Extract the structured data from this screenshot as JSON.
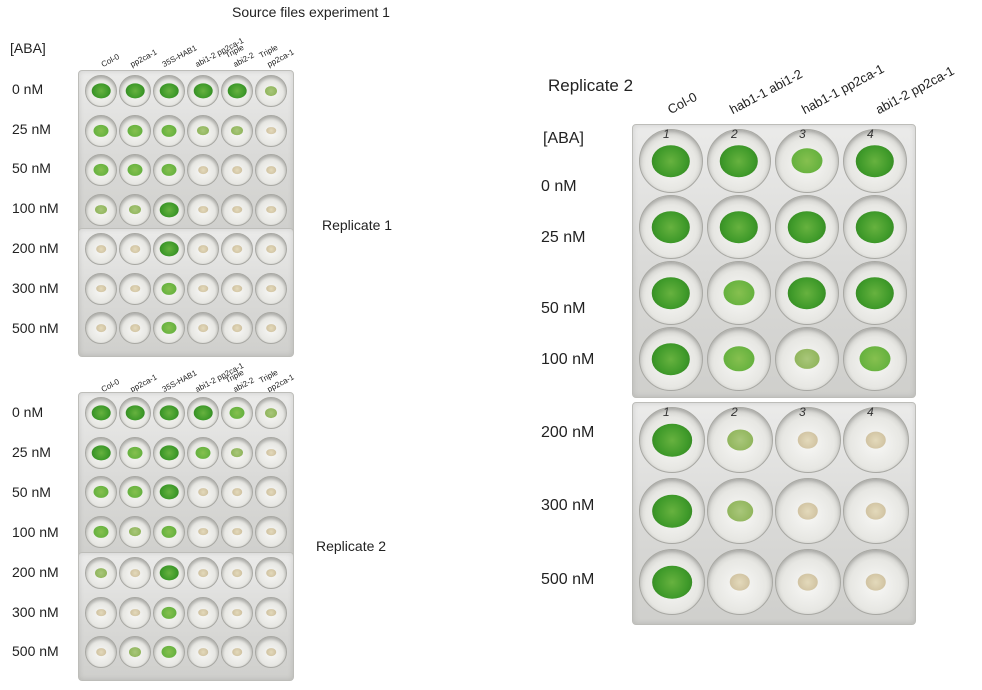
{
  "header": {
    "title": "Source files experiment 1"
  },
  "exp1": {
    "aba_label": "[ABA]",
    "columns": [
      "Col-0",
      "pp2ca-1",
      "35S-HAB1",
      "abi1-2 pp2ca-1",
      "Triple\nabi2-2",
      "Triple\npp2ca-1"
    ],
    "concentrations": [
      "0 nM",
      "25 nM",
      "50 nM",
      "100 nM",
      "200 nM",
      "300 nM",
      "500 nM"
    ],
    "replicate1_label": "Replicate 1",
    "replicate2_label": "Replicate 2"
  },
  "rep2": {
    "title": "Replicate 2",
    "aba_label": "[ABA]",
    "columns": [
      "Col-0",
      "hab1-1 abi1-2",
      "hab1-1 pp2ca-1",
      "abi1-2 pp2ca-1"
    ],
    "concentrations": [
      "0 nM",
      "25 nM",
      "50 nM",
      "100 nM",
      "200 nM",
      "300 nM",
      "500 nM"
    ],
    "well_numbers": [
      "1",
      "2",
      "3",
      "4"
    ]
  },
  "colors": {
    "green_strong": "#3f9a2a",
    "green_mid": "#67b23f",
    "green_pale": "#a9c77a",
    "seed_brown": "#c7b58a"
  }
}
